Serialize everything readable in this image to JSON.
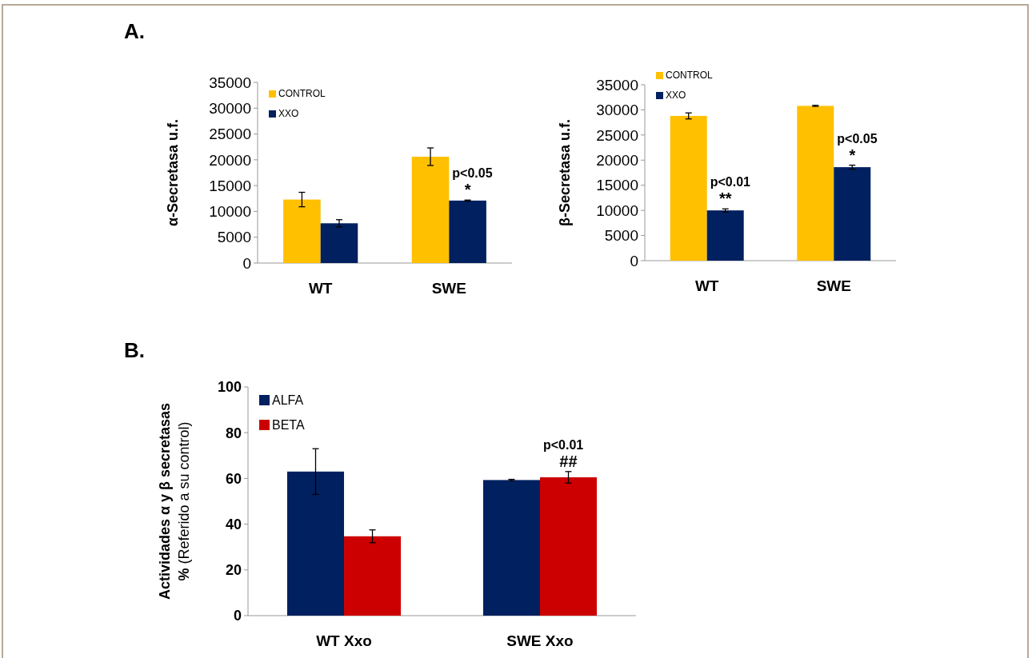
{
  "chart_data": [
    {
      "type": "bar",
      "categories": [
        "WT",
        "SWE"
      ],
      "ylabel": "α-Secretasa  u.f.",
      "ylim": [
        0,
        35000
      ],
      "yticks": [
        0,
        5000,
        10000,
        15000,
        20000,
        25000,
        30000,
        35000
      ],
      "legend": "top left",
      "annotations": [
        "A.",
        {
          "text": "*",
          "x": "SWE",
          "y": 12100
        },
        {
          "text": "p<0.05",
          "x": "SWE",
          "y": 12100
        }
      ],
      "series": [
        {
          "name": "CONTROL",
          "color": "#ffc000",
          "values": [
            12300,
            20600
          ],
          "errors": [
            1400,
            1700
          ]
        },
        {
          "name": "XXO",
          "color": "#002060",
          "values": [
            7700,
            12100
          ],
          "errors": [
            700,
            100
          ]
        }
      ]
    },
    {
      "type": "bar",
      "categories": [
        "WT",
        "SWE"
      ],
      "ylabel": "β-Secretasa  u.f.",
      "ylim": [
        0,
        35000
      ],
      "yticks": [
        0,
        5000,
        10000,
        15000,
        20000,
        25000,
        30000,
        35000
      ],
      "legend": "top left",
      "annotations": [
        {
          "text": "**",
          "x": "WT",
          "y": 10000
        },
        {
          "text": "p<0.01",
          "x": "WT",
          "y": 10000
        },
        {
          "text": "*",
          "x": "SWE",
          "y": 18600
        },
        {
          "text": "p<0.05",
          "x": "SWE",
          "y": 18600
        }
      ],
      "series": [
        {
          "name": "CONTROL",
          "color": "#ffc000",
          "values": [
            28800,
            30800
          ],
          "errors": [
            600,
            100
          ]
        },
        {
          "name": "XXO",
          "color": "#002060",
          "values": [
            10000,
            18600
          ],
          "errors": [
            300,
            400
          ]
        }
      ]
    },
    {
      "type": "bar",
      "categories": [
        "WT Xxo",
        "SWE Xxo"
      ],
      "ylabel": "Actividades α y β secretasas\n%  (Referido a su control)",
      "ylim": [
        0,
        100
      ],
      "yticks": [
        0,
        20,
        40,
        60,
        80,
        100
      ],
      "legend": "top left",
      "annotations": [
        "B.",
        {
          "text": "##",
          "x": "SWE Xxo",
          "y": 60.5
        },
        {
          "text": "p<0.01",
          "x": "SWE Xxo",
          "y": 60.5
        }
      ],
      "series": [
        {
          "name": "ALFA",
          "color": "#002060",
          "values": [
            63,
            59.3
          ],
          "errors": [
            10,
            0.3
          ]
        },
        {
          "name": "BETA",
          "color": "#cc0000",
          "values": [
            34.7,
            60.5
          ],
          "errors": [
            2.8,
            2.5
          ]
        }
      ]
    }
  ]
}
